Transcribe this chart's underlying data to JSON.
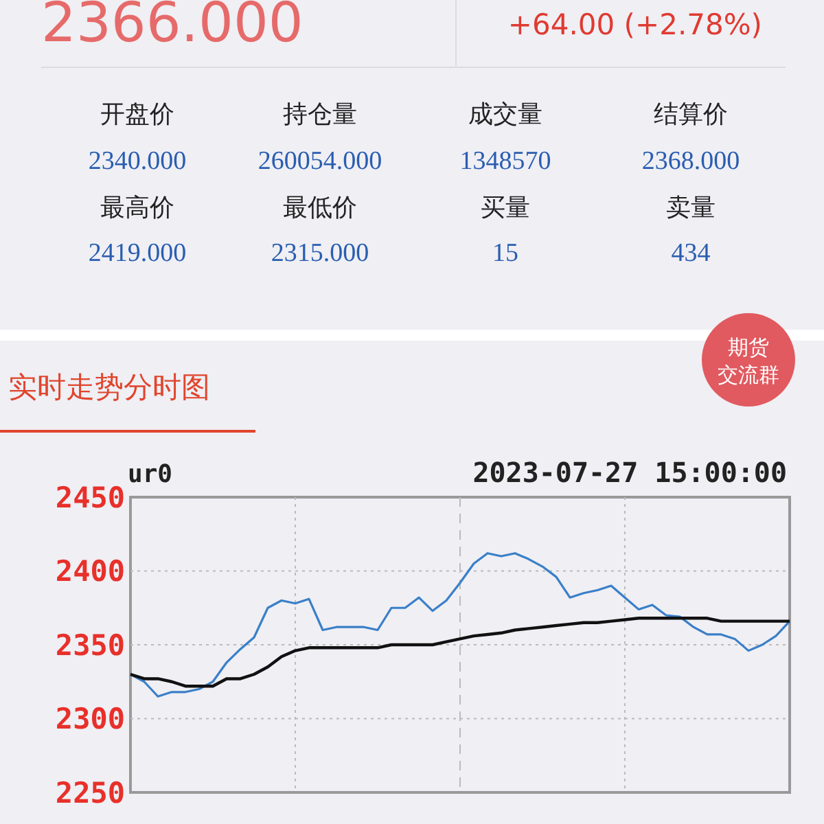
{
  "chart_data": [
    {
      "type": "other",
      "title": "2366.000",
      "subtitle": "+64.00 (+2.78%)",
      "annotations": [
        "开盘价",
        "持仓量",
        "成交量",
        "结算价",
        "2340.000",
        "260054.000",
        "1348570",
        "2368.000",
        "最高价",
        "最低价",
        "买量",
        "卖量",
        "2419.000",
        "2315.000",
        "15",
        "434"
      ]
    },
    {
      "type": "line",
      "title": "实时走势分时图",
      "annotations": [
        "ur0",
        "2023-07-27 15:00:00",
        "期货",
        "交流群"
      ],
      "categories": [
        null,
        null,
        null,
        null,
        null,
        null,
        null,
        null,
        null,
        null,
        null,
        null,
        null,
        null,
        null,
        null,
        null,
        null,
        null,
        null,
        null,
        null,
        null,
        null,
        null,
        null,
        null,
        null,
        null,
        null,
        null,
        null,
        null,
        null,
        null,
        null,
        null,
        null,
        null,
        null,
        null,
        null,
        null,
        null,
        null,
        null,
        null,
        null,
        null
      ],
      "ylim": [
        2250,
        2450
      ],
      "yticks": [
        2250,
        2300,
        2350,
        2400,
        2450
      ],
      "grid": true,
      "line_style": "solid",
      "series": [
        {
          "color": "#3a7fc8",
          "values": [
            2330,
            2325,
            2315,
            2318,
            2318,
            2320,
            2325,
            2338,
            2347,
            2355,
            2375,
            2380,
            2378,
            2381,
            2360,
            2362,
            2362,
            2362,
            2360,
            2375,
            2375,
            2382,
            2373,
            2380,
            2392,
            2405,
            2412,
            2410,
            2412,
            2408,
            2403,
            2396,
            2382,
            2385,
            2387,
            2390,
            2382,
            2374,
            2377,
            2370,
            2369,
            2362,
            2357,
            2357,
            2354,
            2346,
            2350,
            2356,
            2366
          ]
        },
        {
          "color": "#111111",
          "values": [
            2330,
            2327,
            2327,
            2325,
            2322,
            2322,
            2322,
            2327,
            2327,
            2330,
            2335,
            2342,
            2346,
            2348,
            2348,
            2348,
            2348,
            2348,
            2348,
            2350,
            2350,
            2350,
            2350,
            2352,
            2354,
            2356,
            2357,
            2358,
            2360,
            2361,
            2362,
            2363,
            2364,
            2365,
            2365,
            2366,
            2367,
            2368,
            2368,
            2368,
            2368,
            2368,
            2368,
            2366,
            2366,
            2366,
            2366,
            2366,
            2366
          ]
        }
      ]
    }
  ]
}
